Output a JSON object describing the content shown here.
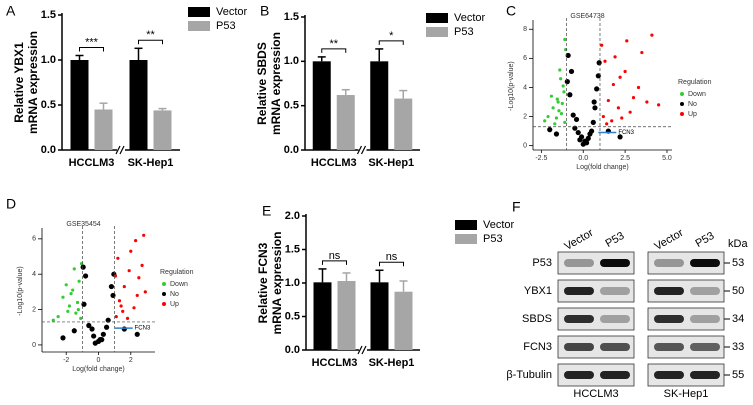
{
  "chart_data": [
    {
      "type": "bar",
      "panel": "A",
      "ylabel": [
        "Relative YBX1",
        "mRNA expression"
      ],
      "categories": [
        "HCCLM3",
        "SK-Hep1"
      ],
      "series": [
        {
          "name": "Vector",
          "color": "#000000",
          "values": [
            1.0,
            1.0
          ],
          "errors": [
            0.05,
            0.13
          ]
        },
        {
          "name": "P53",
          "color": "#a6a6a6",
          "values": [
            0.45,
            0.44
          ],
          "errors": [
            0.07,
            0.02
          ]
        }
      ],
      "significance": [
        "***",
        "**"
      ],
      "ylim": [
        0,
        1.5
      ],
      "yticks": [
        {
          "value": 0,
          "label": "0.0"
        },
        0.5,
        {
          "value": 1,
          "label": "1.0"
        },
        1.5
      ]
    },
    {
      "type": "bar",
      "panel": "B",
      "ylabel": [
        "Relative SBDS",
        "mRNA expression"
      ],
      "categories": [
        "HCCLM3",
        "SK-Hep1"
      ],
      "series": [
        {
          "name": "Vector",
          "color": "#000000",
          "values": [
            1.0,
            1.0
          ],
          "errors": [
            0.05,
            0.14
          ]
        },
        {
          "name": "P53",
          "color": "#a6a6a6",
          "values": [
            0.62,
            0.58
          ],
          "errors": [
            0.06,
            0.09
          ]
        }
      ],
      "significance": [
        "**",
        "*"
      ],
      "ylim": [
        0,
        1.5
      ],
      "yticks": [
        {
          "value": 0,
          "label": "0.0"
        },
        0.5,
        {
          "value": 1,
          "label": "1.0"
        },
        1.5
      ]
    },
    {
      "type": "scatter",
      "panel": "C",
      "title": "GSE64738",
      "xlabel": "Log(fold change)",
      "ylabel": "-Log10(p-value)",
      "legend_title": "Regulation",
      "xlim": [
        -3,
        5.3
      ],
      "ylim": [
        -0.3,
        8.5
      ],
      "xticks": [
        -2.5,
        {
          "value": 0,
          "label": "0.0"
        },
        2.5,
        {
          "value": 5,
          "label": "5.0"
        }
      ],
      "yticks": [
        0,
        2,
        4,
        6,
        8
      ],
      "thresholds": {
        "x": [
          -1,
          1
        ],
        "y": 1.3
      },
      "annotation": {
        "text": "FCN3",
        "x": 0.9,
        "y": 0.9
      },
      "series": [
        {
          "name": "Down",
          "color": "#33cc33",
          "x": [
            -1.1,
            -1.3,
            -1.5,
            -1.2,
            -1.8,
            -1.4,
            -1.6,
            -1.05,
            -1.9,
            -1.25,
            -2.1,
            -1.35,
            -1.7,
            -1.15,
            -1.45,
            -2.3,
            -1.55,
            -1.1
          ],
          "y": [
            1.6,
            2.2,
            3.0,
            4.1,
            2.6,
            5.2,
            1.9,
            6.6,
            3.4,
            2.9,
            2.0,
            4.6,
            1.5,
            3.7,
            2.4,
            1.7,
            3.2,
            7.3
          ]
        },
        {
          "name": "No",
          "color": "#000000",
          "x": [
            -0.8,
            -0.5,
            -0.2,
            0.1,
            0.4,
            0.7,
            0.9,
            -0.9,
            -0.6,
            -0.3,
            0,
            0.3,
            0.6,
            0.8,
            -0.7,
            -0.4,
            0.2,
            0.5,
            -0.1,
            0.95,
            -0.95,
            1.5,
            -1.6,
            2.2,
            -2.0,
            0.65
          ],
          "y": [
            3.5,
            1.2,
            0.4,
            0.3,
            0.8,
            2.6,
            4.8,
            6.2,
            2.1,
            0.9,
            0.1,
            0.5,
            1.6,
            3.9,
            5.1,
            1.8,
            0.2,
            1.0,
            0.6,
            5.7,
            4.4,
            1.0,
            0.8,
            0.6,
            1.1,
            3.0
          ]
        },
        {
          "name": "Up",
          "color": "#ff0000",
          "x": [
            1.2,
            1.5,
            1.8,
            2.1,
            2.5,
            3.0,
            3.5,
            4.1,
            1.3,
            1.7,
            2.2,
            2.8,
            3.3,
            1.1,
            1.9,
            2.6,
            3.8,
            1.4,
            2.3,
            4.5
          ],
          "y": [
            2.0,
            3.1,
            4.2,
            2.6,
            5.1,
            3.3,
            6.4,
            7.6,
            5.8,
            1.7,
            4.7,
            2.3,
            4.0,
            6.9,
            6.1,
            7.2,
            3.0,
            1.5,
            1.9,
            2.8
          ]
        }
      ]
    },
    {
      "type": "scatter",
      "panel": "D",
      "title": "GSE35454",
      "xlabel": "Log(fold change)",
      "ylabel": "-Log10(p-value)",
      "legend_title": "Regulation",
      "xlim": [
        -3.5,
        3.5
      ],
      "ylim": [
        -0.4,
        6.5
      ],
      "xticks": [
        -2,
        0,
        2
      ],
      "yticks": [
        0,
        2,
        4,
        6
      ],
      "thresholds": {
        "x": [
          -1,
          1
        ],
        "y": 1.3
      },
      "annotation": {
        "text": "FCN3",
        "x": 1.0,
        "y": 0.95
      },
      "series": [
        {
          "name": "Down",
          "color": "#33cc33",
          "x": [
            -1.1,
            -1.3,
            -1.6,
            -1.9,
            -2.2,
            -1.2,
            -1.5,
            -1.8,
            -2.5,
            -1.05,
            -1.4,
            -2.0,
            -1.7,
            -1.25,
            -2.8
          ],
          "y": [
            1.5,
            2.4,
            3.1,
            1.9,
            2.7,
            3.6,
            4.3,
            2.2,
            1.6,
            4.6,
            1.8,
            3.4,
            2.9,
            2.0,
            1.4
          ]
        },
        {
          "name": "No",
          "color": "#000000",
          "x": [
            -0.9,
            -0.6,
            -0.3,
            0,
            0.3,
            0.6,
            0.9,
            -0.8,
            -0.4,
            0.1,
            0.5,
            0.8,
            -1.5,
            -2.2,
            1.6,
            2.4,
            -0.95,
            0.95,
            -0.2,
            0.2
          ],
          "y": [
            2.3,
            1.1,
            0.5,
            0.2,
            0.6,
            1.4,
            2.8,
            3.9,
            0.9,
            0.3,
            1.0,
            3.3,
            0.8,
            0.4,
            0.9,
            0.6,
            4.4,
            4.0,
            0.1,
            0.3
          ]
        },
        {
          "name": "Up",
          "color": "#ff0000",
          "x": [
            1.1,
            1.3,
            1.6,
            1.9,
            2.2,
            2.5,
            2.8,
            1.2,
            1.5,
            2.0,
            2.4,
            2.7,
            1.05,
            1.8,
            2.3,
            2.9,
            1.4
          ],
          "y": [
            1.6,
            2.5,
            3.3,
            4.2,
            2.1,
            3.8,
            6.2,
            4.9,
            1.9,
            5.3,
            2.8,
            4.5,
            3.9,
            1.5,
            5.9,
            3.0,
            2.2
          ]
        }
      ]
    },
    {
      "type": "bar",
      "panel": "E",
      "ylabel": [
        "Relative FCN3",
        "mRNA expression"
      ],
      "categories": [
        "HCCLM3",
        "SK-Hep1"
      ],
      "series": [
        {
          "name": "Vector",
          "color": "#000000",
          "values": [
            1.01,
            1.01
          ],
          "errors": [
            0.2,
            0.18
          ]
        },
        {
          "name": "P53",
          "color": "#a6a6a6",
          "values": [
            1.03,
            0.87
          ],
          "errors": [
            0.12,
            0.16
          ]
        }
      ],
      "significance": [
        "ns",
        "ns"
      ],
      "ylim": [
        0,
        2
      ],
      "yticks": [
        {
          "value": 0,
          "label": "0.0"
        },
        0.5,
        {
          "value": 1,
          "label": "1.0"
        },
        1.5,
        {
          "value": 2,
          "label": "2.0"
        }
      ]
    }
  ],
  "blot": {
    "panel": "F",
    "lanes": [
      "Vector",
      "P53"
    ],
    "cell_lines": [
      "HCCLM3",
      "SK-Hep1"
    ],
    "unit": "kDa",
    "rows": [
      {
        "protein": "P53",
        "kda": "53"
      },
      {
        "protein": "YBX1",
        "kda": "50"
      },
      {
        "protein": "SBDS",
        "kda": "34"
      },
      {
        "protein": "FCN3",
        "kda": "33"
      },
      {
        "protein": "β-Tubulin",
        "kda": "55"
      }
    ]
  }
}
